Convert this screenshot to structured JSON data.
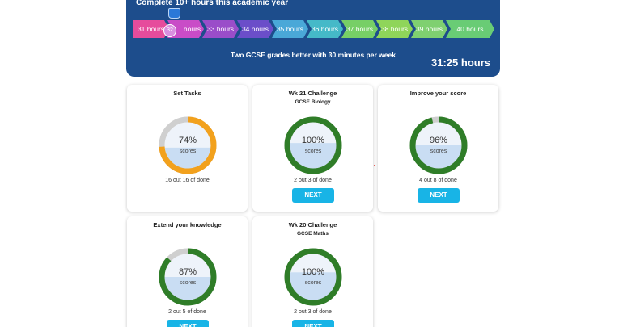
{
  "banner": {
    "title": "Complete 10+ hours this academic year",
    "subtitle": "Two GCSE grades better with 30 minutes per week",
    "hours": "31:25 hours",
    "current": "32",
    "segments": [
      {
        "label": "31 hours",
        "color": "#e64c9c"
      },
      {
        "label": "hours",
        "color": "#c94cc7"
      },
      {
        "label": "33 hours",
        "color": "#9a4dc9"
      },
      {
        "label": "34 hours",
        "color": "#6b4ec9"
      },
      {
        "label": "35 hours",
        "color": "#4aa8d8"
      },
      {
        "label": "36 hours",
        "color": "#45b9c8"
      },
      {
        "label": "37 hours",
        "color": "#77cf66"
      },
      {
        "label": "38 hours",
        "color": "#8fd55a"
      },
      {
        "label": "39 hours",
        "color": "#7fd070"
      },
      {
        "label": "40 hours",
        "color": "#69cc75"
      }
    ]
  },
  "cards": [
    {
      "title": "Set Tasks",
      "subtitle": "",
      "percent": "74%",
      "value": 0.74,
      "label": "scores",
      "progress": "16 out 16 of done",
      "button": "",
      "ring_color": "#f2a11d",
      "fill": 0.45
    },
    {
      "title": "Wk 21 Challenge",
      "subtitle": "GCSE Biology",
      "percent": "100%",
      "value": 1.0,
      "label": "scores",
      "progress": "2 out 3 of done",
      "button": "NEXT",
      "ring_color": "#2f7d28",
      "fill": 0.55
    },
    {
      "title": "Improve your score",
      "subtitle": "",
      "percent": "96%",
      "value": 0.96,
      "label": "scores",
      "progress": "4 out 8 of done",
      "button": "NEXT",
      "ring_color": "#2f7d28",
      "fill": 0.5
    },
    {
      "title": "Extend your knowledge",
      "subtitle": "",
      "percent": "87%",
      "value": 0.87,
      "label": "scores",
      "progress": "2 out 5 of done",
      "button": "NEXT",
      "ring_color": "#2f7d28",
      "fill": 0.5
    },
    {
      "title": "Wk 20 Challenge",
      "subtitle": "GCSE Maths",
      "percent": "100%",
      "value": 1.0,
      "label": "scores",
      "progress": "2 out 3 of done",
      "button": "NEXT",
      "ring_color": "#2f7d28",
      "fill": 0.6
    }
  ]
}
